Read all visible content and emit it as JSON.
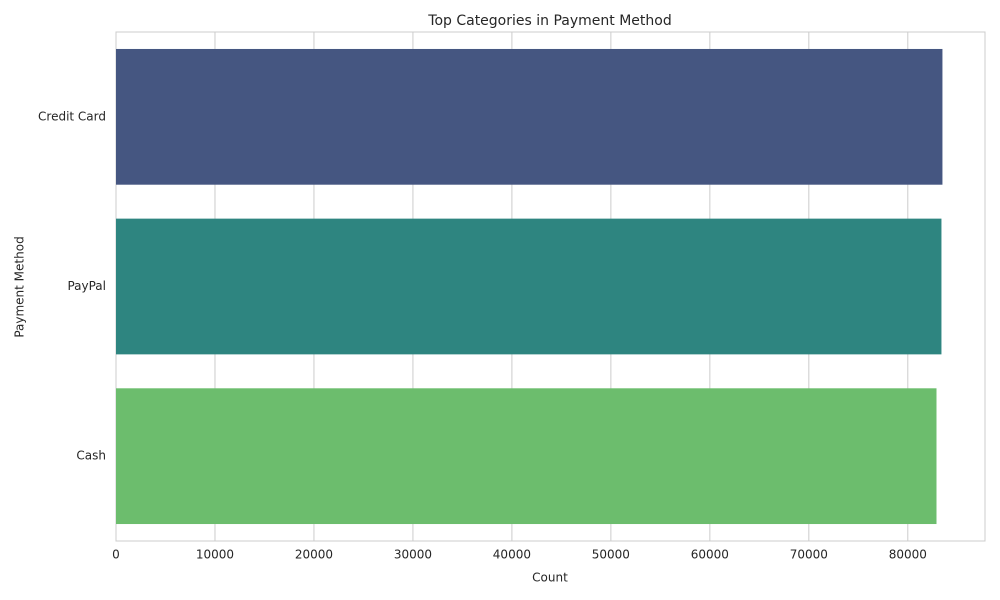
{
  "chart_data": {
    "type": "bar",
    "orientation": "horizontal",
    "title": "Top Categories in Payment Method",
    "x_label": "Count",
    "y_label": "Payment Method",
    "categories": [
      "Credit Card",
      "PayPal",
      "Cash"
    ],
    "values": [
      83500,
      83400,
      82900
    ],
    "colors": [
      "#455681",
      "#2e8580",
      "#6cbd6d"
    ],
    "xlim": [
      0,
      87800
    ],
    "xticks": [
      0,
      10000,
      20000,
      30000,
      40000,
      50000,
      60000,
      70000,
      80000
    ],
    "grid": true
  }
}
